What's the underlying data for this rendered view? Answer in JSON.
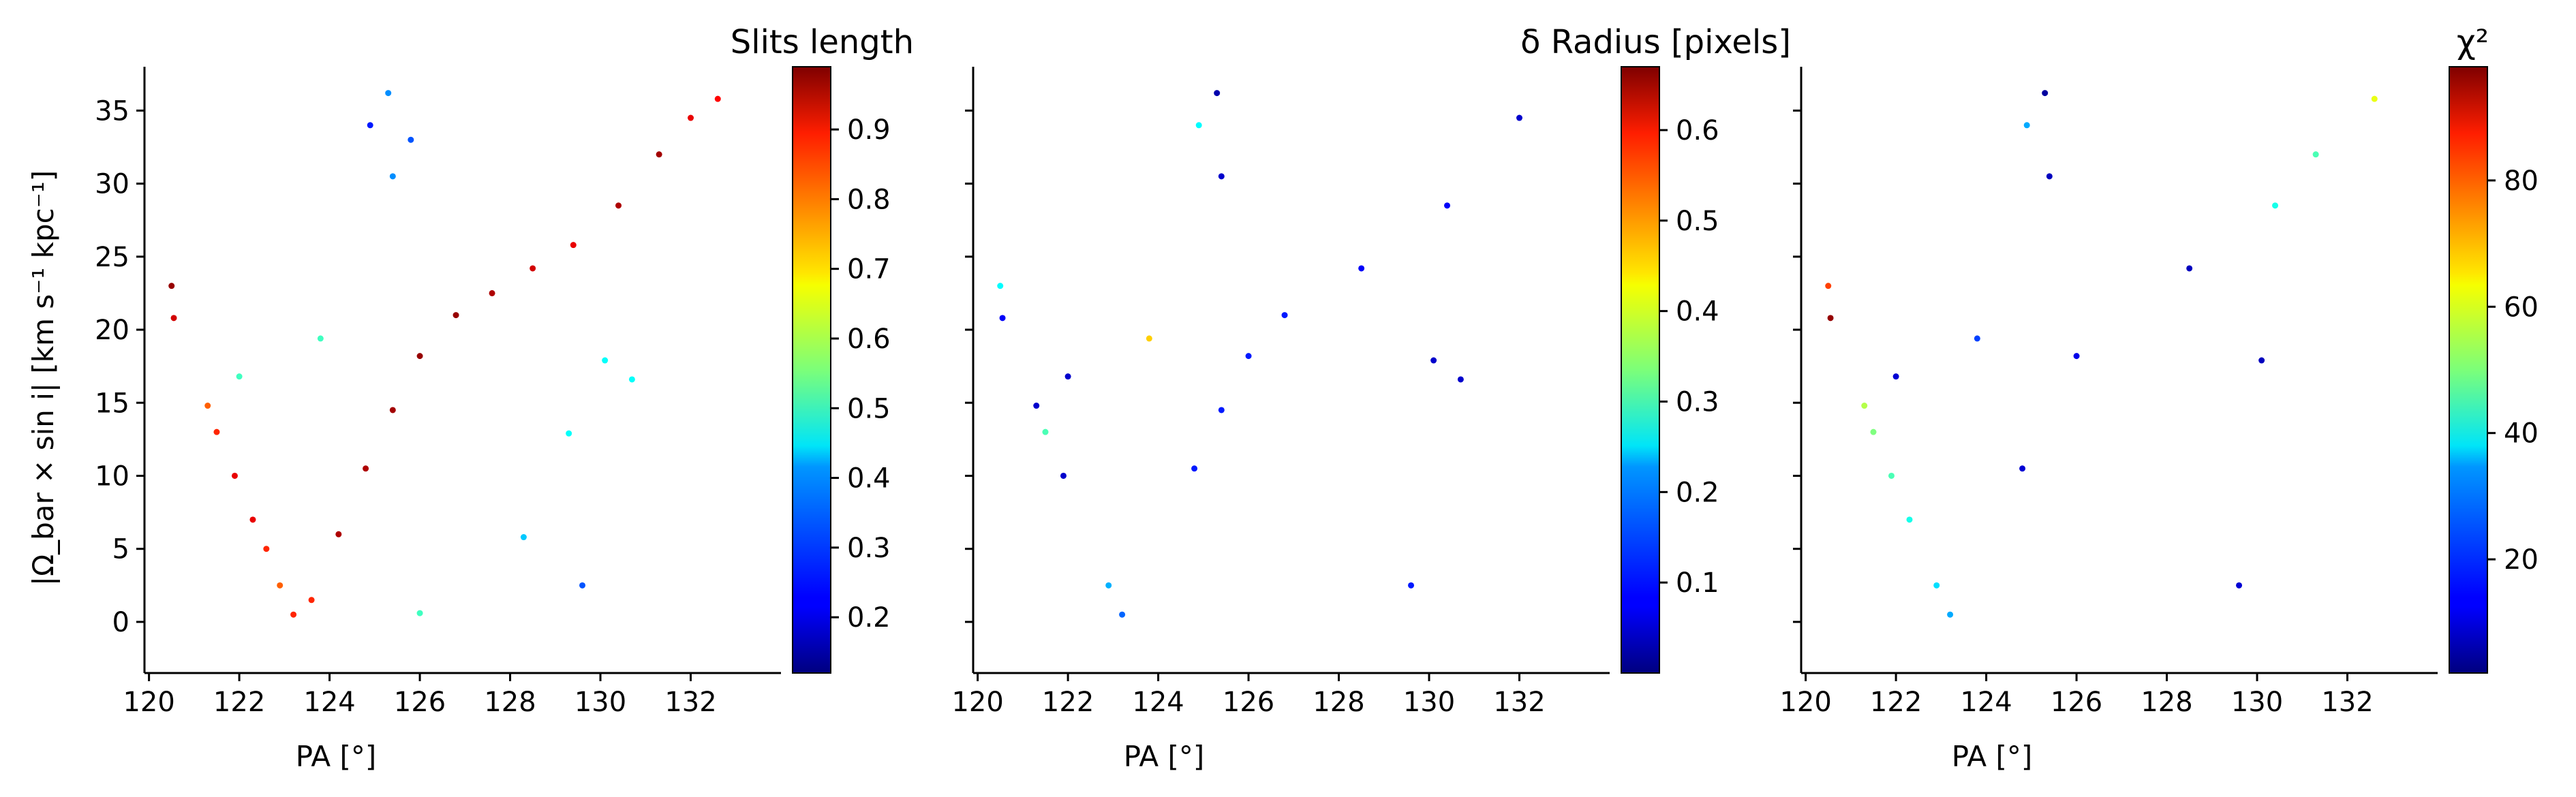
{
  "chart_data": [
    {
      "type": "scatter",
      "colorbar_label": "Slits length",
      "colorbar_ticks": [
        0.2,
        0.3,
        0.4,
        0.5,
        0.6,
        0.7,
        0.8,
        0.9
      ],
      "clim": [
        0.12,
        0.99
      ],
      "colormap": "jet",
      "xlabel": "PA [°]",
      "ylabel": "|Ω_bar × sin i|  [km s⁻¹ kpc⁻¹]",
      "xticks": [
        120,
        122,
        124,
        126,
        128,
        130,
        132
      ],
      "yticks": [
        0,
        5,
        10,
        15,
        20,
        25,
        30,
        35
      ],
      "xlim": [
        119.9,
        134.0
      ],
      "ylim": [
        -3.5,
        38
      ],
      "series": [
        {
          "color_rule": "main branch high (0.85-0.99), inner edge of branch lower (0.55-0.7), scattered outliers low",
          "points": [
            {
              "x": 120.5,
              "y": 23.0,
              "c": 0.97
            },
            {
              "x": 120.55,
              "y": 20.8,
              "c": 0.92
            },
            {
              "x": 121.3,
              "y": 14.8,
              "c": 0.8
            },
            {
              "x": 121.5,
              "y": 13.0,
              "c": 0.85
            },
            {
              "x": 121.9,
              "y": 10.0,
              "c": 0.9
            },
            {
              "x": 122.3,
              "y": 7.0,
              "c": 0.9
            },
            {
              "x": 122.6,
              "y": 5.0,
              "c": 0.85
            },
            {
              "x": 122.9,
              "y": 2.5,
              "c": 0.8
            },
            {
              "x": 123.2,
              "y": 0.5,
              "c": 0.85
            },
            {
              "x": 123.6,
              "y": 1.5,
              "c": 0.85
            },
            {
              "x": 124.2,
              "y": 6.0,
              "c": 0.95
            },
            {
              "x": 124.8,
              "y": 10.5,
              "c": 0.95
            },
            {
              "x": 125.4,
              "y": 14.5,
              "c": 0.96
            },
            {
              "x": 126.0,
              "y": 18.2,
              "c": 0.97
            },
            {
              "x": 126.8,
              "y": 21.0,
              "c": 0.97
            },
            {
              "x": 127.6,
              "y": 22.5,
              "c": 0.95
            },
            {
              "x": 128.5,
              "y": 24.2,
              "c": 0.92
            },
            {
              "x": 129.4,
              "y": 25.8,
              "c": 0.9
            },
            {
              "x": 130.4,
              "y": 28.5,
              "c": 0.95
            },
            {
              "x": 131.3,
              "y": 32.0,
              "c": 0.96
            },
            {
              "x": 132.0,
              "y": 34.5,
              "c": 0.9
            },
            {
              "x": 132.6,
              "y": 35.8,
              "c": 0.88
            },
            {
              "x": 125.3,
              "y": 36.2,
              "c": 0.35
            },
            {
              "x": 124.9,
              "y": 34.0,
              "c": 0.25
            },
            {
              "x": 125.8,
              "y": 33.0,
              "c": 0.3
            },
            {
              "x": 125.4,
              "y": 30.5,
              "c": 0.35
            },
            {
              "x": 123.8,
              "y": 19.4,
              "c": 0.5
            },
            {
              "x": 122.0,
              "y": 16.8,
              "c": 0.5
            },
            {
              "x": 130.1,
              "y": 17.9,
              "c": 0.45
            },
            {
              "x": 130.7,
              "y": 16.6,
              "c": 0.45
            },
            {
              "x": 129.3,
              "y": 12.9,
              "c": 0.45
            },
            {
              "x": 129.6,
              "y": 2.5,
              "c": 0.3
            },
            {
              "x": 128.3,
              "y": 5.8,
              "c": 0.4
            },
            {
              "x": 126.0,
              "y": 0.6,
              "c": 0.5
            }
          ]
        }
      ]
    },
    {
      "type": "scatter",
      "colorbar_label": "δ Radius [pixels]",
      "colorbar_ticks": [
        0.1,
        0.2,
        0.3,
        0.4,
        0.5,
        0.6
      ],
      "clim": [
        0.0,
        0.67
      ],
      "colormap": "jet",
      "xlabel": "PA [°]",
      "ylabel": "",
      "xticks": [
        120,
        122,
        124,
        126,
        128,
        130,
        132
      ],
      "yticks": [
        0,
        5,
        10,
        15,
        20,
        25,
        30,
        35
      ],
      "xlim": [
        119.9,
        134.0
      ],
      "ylim": [
        -3.5,
        38
      ],
      "series": [
        {
          "color_rule": "mostly low (0.0-0.1) with sparse cyan/green/yellow points up to ~0.4",
          "points": [
            {
              "x": 120.5,
              "y": 23.0,
              "c": 0.25
            },
            {
              "x": 120.55,
              "y": 20.8,
              "c": 0.08
            },
            {
              "x": 121.3,
              "y": 14.8,
              "c": 0.05
            },
            {
              "x": 121.5,
              "y": 13.0,
              "c": 0.3
            },
            {
              "x": 121.9,
              "y": 10.0,
              "c": 0.05
            },
            {
              "x": 122.9,
              "y": 2.5,
              "c": 0.2
            },
            {
              "x": 123.2,
              "y": 0.5,
              "c": 0.15
            },
            {
              "x": 124.8,
              "y": 10.5,
              "c": 0.1
            },
            {
              "x": 125.4,
              "y": 14.5,
              "c": 0.1
            },
            {
              "x": 126.0,
              "y": 18.2,
              "c": 0.1
            },
            {
              "x": 126.8,
              "y": 21.0,
              "c": 0.1
            },
            {
              "x": 128.5,
              "y": 24.2,
              "c": 0.08
            },
            {
              "x": 130.4,
              "y": 28.5,
              "c": 0.08
            },
            {
              "x": 132.0,
              "y": 34.5,
              "c": 0.05
            },
            {
              "x": 125.3,
              "y": 36.2,
              "c": 0.03
            },
            {
              "x": 124.9,
              "y": 34.0,
              "c": 0.25
            },
            {
              "x": 125.4,
              "y": 30.5,
              "c": 0.05
            },
            {
              "x": 123.8,
              "y": 19.4,
              "c": 0.45
            },
            {
              "x": 122.0,
              "y": 16.8,
              "c": 0.05
            },
            {
              "x": 130.1,
              "y": 17.9,
              "c": 0.05
            },
            {
              "x": 130.7,
              "y": 16.6,
              "c": 0.05
            },
            {
              "x": 129.6,
              "y": 2.5,
              "c": 0.1
            }
          ]
        }
      ]
    },
    {
      "type": "scatter",
      "colorbar_label": "χ²",
      "colorbar_ticks": [
        20,
        40,
        60,
        80
      ],
      "clim": [
        2,
        98
      ],
      "colormap": "jet",
      "xlabel": "PA [°]",
      "ylabel": "",
      "xticks": [
        120,
        122,
        124,
        126,
        128,
        130,
        132
      ],
      "yticks": [
        0,
        5,
        10,
        15,
        20,
        25,
        30,
        35
      ],
      "xlim": [
        119.9,
        134.0
      ],
      "ylim": [
        -3.5,
        38
      ],
      "series": [
        {
          "color_rule": "mostly low (5-20); left descending branch moderate (30-55); upper-right tip of branch 40-60; two leftmost points high",
          "points": [
            {
              "x": 120.5,
              "y": 23.0,
              "c": 80
            },
            {
              "x": 120.55,
              "y": 20.8,
              "c": 96
            },
            {
              "x": 121.3,
              "y": 14.8,
              "c": 55
            },
            {
              "x": 121.5,
              "y": 13.0,
              "c": 50
            },
            {
              "x": 121.9,
              "y": 10.0,
              "c": 45
            },
            {
              "x": 122.3,
              "y": 7.0,
              "c": 40
            },
            {
              "x": 122.9,
              "y": 2.5,
              "c": 35
            },
            {
              "x": 123.2,
              "y": 0.5,
              "c": 30
            },
            {
              "x": 124.8,
              "y": 10.5,
              "c": 10
            },
            {
              "x": 126.0,
              "y": 18.2,
              "c": 12
            },
            {
              "x": 128.5,
              "y": 24.2,
              "c": 8
            },
            {
              "x": 130.4,
              "y": 28.5,
              "c": 40
            },
            {
              "x": 131.3,
              "y": 32.0,
              "c": 45
            },
            {
              "x": 132.6,
              "y": 35.8,
              "c": 60
            },
            {
              "x": 125.3,
              "y": 36.2,
              "c": 5
            },
            {
              "x": 124.9,
              "y": 34.0,
              "c": 30
            },
            {
              "x": 125.4,
              "y": 30.5,
              "c": 8
            },
            {
              "x": 123.8,
              "y": 19.4,
              "c": 20
            },
            {
              "x": 122.0,
              "y": 16.8,
              "c": 10
            },
            {
              "x": 130.1,
              "y": 17.9,
              "c": 8
            },
            {
              "x": 129.6,
              "y": 2.5,
              "c": 10
            }
          ]
        }
      ]
    }
  ]
}
